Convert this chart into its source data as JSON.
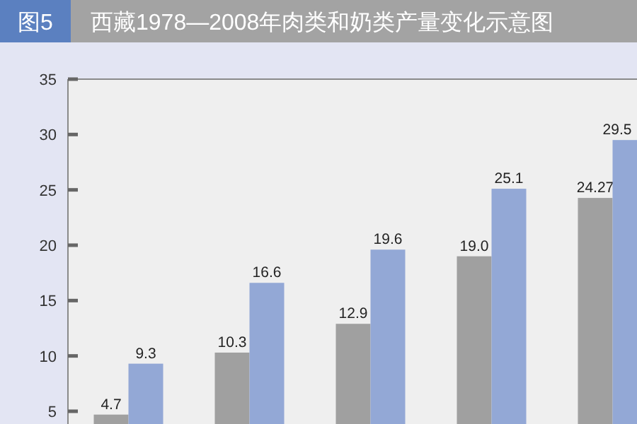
{
  "chart_data": {
    "type": "bar",
    "title": "西藏1978—2008年肉类和奶类产量变化示意图",
    "annotations": [
      "图5"
    ],
    "categories": [
      null,
      null,
      null,
      null,
      null
    ],
    "series": [
      {
        "color": "#a0a0a0",
        "values": [
          4.7,
          10.3,
          12.9,
          19.0,
          24.27
        ],
        "value_labels": [
          "4.7",
          "10.3",
          "12.9",
          "19.0",
          "24.27"
        ]
      },
      {
        "color": "#93a8d6",
        "values": [
          9.3,
          16.6,
          19.6,
          25.1,
          29.5
        ],
        "value_labels": [
          "9.3",
          "16.6",
          "19.6",
          "25.1",
          "29.5"
        ]
      }
    ],
    "ylim": [
      3.85,
      35
    ],
    "yticks": [
      5,
      10,
      15,
      20,
      25,
      30,
      35
    ]
  }
}
